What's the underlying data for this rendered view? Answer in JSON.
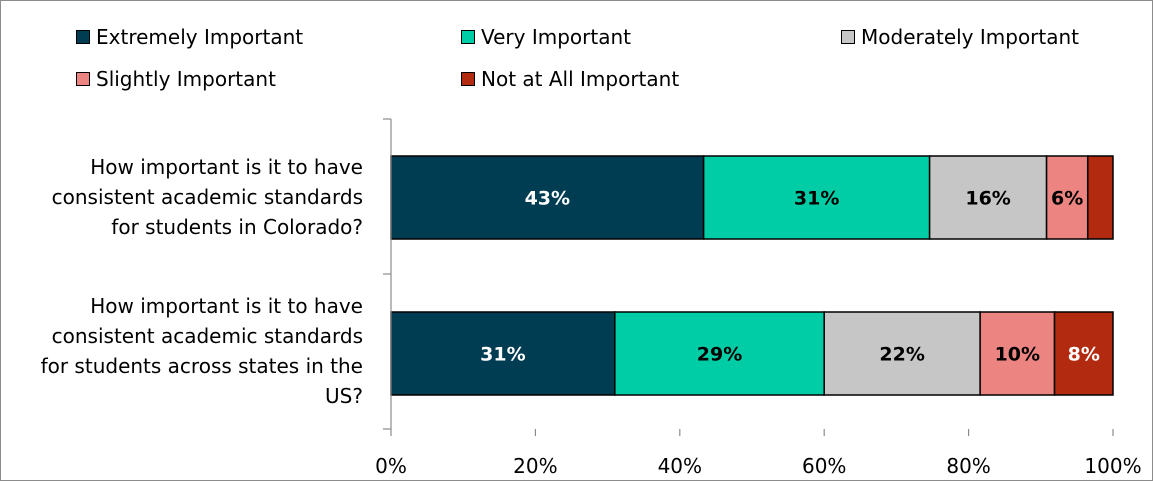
{
  "chart_data": {
    "type": "bar",
    "orientation": "horizontal",
    "stacked": true,
    "title": "",
    "xlabel": "",
    "ylabel": "",
    "xlim": [
      0,
      100
    ],
    "xticks": [
      "0%",
      "20%",
      "40%",
      "60%",
      "80%",
      "100%"
    ],
    "grid": false,
    "legend_position": "top",
    "categories": [
      [
        "How important is it to have",
        "consistent academic standards",
        "for students in Colorado?"
      ],
      [
        "How important is it to have",
        "consistent academic standards",
        "for students across states in the",
        "US?"
      ]
    ],
    "series": [
      {
        "name": "Extremely Important",
        "color": "#003c52",
        "label_color": "#ffffff",
        "values": [
          43.3,
          31
        ],
        "labels": [
          "43%",
          "31%"
        ]
      },
      {
        "name": "Very Important",
        "color": "#00cda6",
        "label_color": "#000000",
        "values": [
          31.3,
          29
        ],
        "labels": [
          "31%",
          "29%"
        ]
      },
      {
        "name": "Moderately Important",
        "color": "#c6c6c6",
        "label_color": "#000000",
        "values": [
          16.2,
          21.6
        ],
        "labels": [
          "16%",
          "22%"
        ]
      },
      {
        "name": "Slightly Important",
        "color": "#ec8581",
        "label_color": "#000000",
        "values": [
          5.7,
          10.3
        ],
        "labels": [
          "6%",
          "10%"
        ]
      },
      {
        "name": "Not at All Important",
        "color": "#b22a0f",
        "label_color": "#ffffff",
        "values": [
          3.5,
          8.1
        ],
        "labels": [
          "",
          "8%"
        ]
      }
    ]
  }
}
